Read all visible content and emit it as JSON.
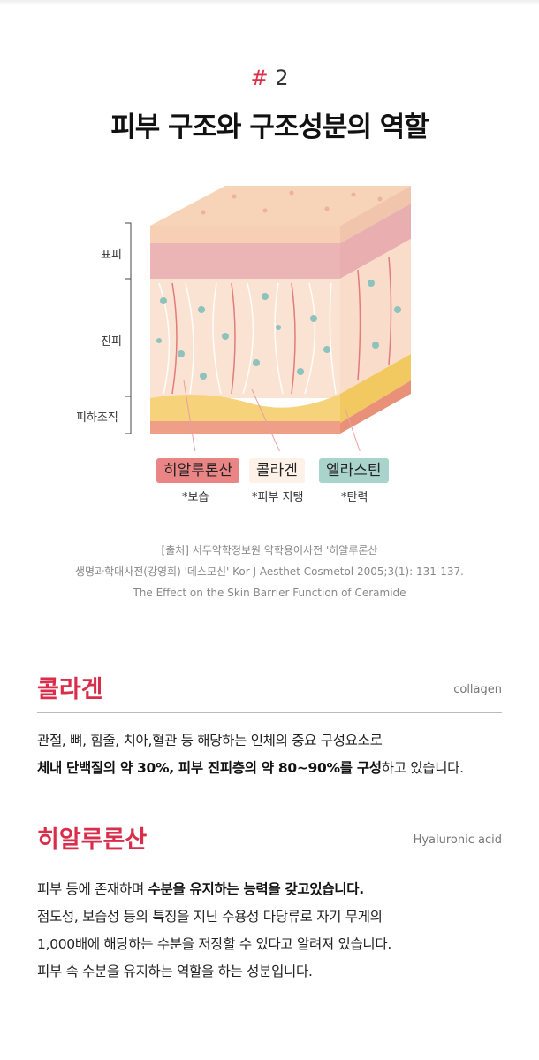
{
  "header": {
    "hash": "#",
    "number": "2",
    "title": "피부 구조와 구조성분의 역할"
  },
  "diagram": {
    "layers": [
      "표피",
      "진피",
      "피하조직"
    ],
    "tags": [
      {
        "label": "히알루론산",
        "note": "*보습",
        "color": "#e98585"
      },
      {
        "label": "콜라겐",
        "note": "*피부 지탱",
        "color": "#fdf1e8"
      },
      {
        "label": "엘라스틴",
        "note": "*탄력",
        "color": "#a9d4cc"
      }
    ]
  },
  "citation": [
    "[출처] 서두약학정보원 약학용어사전 '히알루론산",
    "생명과학대사전(강영회) '데스모신' Kor J Aesthet Cosmetol 2005;3(1): 131-137.",
    "The Effect on the Skin Barrier Function of Ceramide"
  ],
  "collagen": {
    "title": "콜라겐",
    "en": "collagen",
    "line1": "관절, 뼈, 힘줄, 치아,혈관 등 해당하는 인체의 중요 구성요소로",
    "line2_bold1": "체내 단백질의 약 30%, 피부 진피층의 약 80~90%를 구성",
    "line2_rest": "하고 있습니다."
  },
  "hyaluronic": {
    "title": "히알루론산",
    "en": "Hyaluronic acid",
    "line1_pre": "피부 등에 존재하며 ",
    "line1_bold": "수분을 유지하는 능력을 갖고있습니다.",
    "line2": "점도성, 보습성 등의 특징을 지닌 수용성 다당류로 자기 무게의",
    "line3": "1,000배에 해당하는 수분을 저장할 수 있다고 알려져 있습니다.",
    "line4": "피부 속 수분을 유지하는 역할을 하는 성분입니다."
  },
  "colors": {
    "accent": "#d92d4b"
  }
}
